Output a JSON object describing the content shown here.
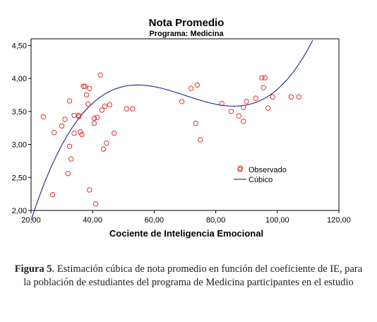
{
  "chart_data": {
    "type": "scatter",
    "title": "Nota Promedio",
    "subtitle": "Programa: Medicina",
    "xlabel": "Cociente de Inteligencia Emocional",
    "ylabel": "",
    "xlim": [
      20,
      120
    ],
    "ylim": [
      2.0,
      4.6
    ],
    "x_ticks": [
      20,
      40,
      60,
      80,
      100,
      120
    ],
    "x_tick_labels": [
      "20,00",
      "40,00",
      "60,00",
      "80,00",
      "100,00",
      "120,00"
    ],
    "y_ticks": [
      2.0,
      2.5,
      3.0,
      3.5,
      4.0,
      4.5
    ],
    "y_tick_labels": [
      "2,00",
      "2,50",
      "3,00",
      "3,50",
      "4,00",
      "4,50"
    ],
    "legend_position": "right-middle",
    "series": [
      {
        "name": "Observado",
        "kind": "points",
        "color": "#e0302a",
        "points": [
          [
            24,
            3.42
          ],
          [
            27,
            2.24
          ],
          [
            27.5,
            3.18
          ],
          [
            30,
            3.28
          ],
          [
            31,
            3.38
          ],
          [
            32,
            2.56
          ],
          [
            32.5,
            2.97
          ],
          [
            32.5,
            3.66
          ],
          [
            33,
            2.78
          ],
          [
            34,
            3.44
          ],
          [
            34,
            3.17
          ],
          [
            35.5,
            3.42
          ],
          [
            35.5,
            3.44
          ],
          [
            36,
            3.19
          ],
          [
            36.5,
            3.15
          ],
          [
            37,
            3.88
          ],
          [
            37.5,
            3.88
          ],
          [
            38,
            3.75
          ],
          [
            38.5,
            3.61
          ],
          [
            39,
            2.31
          ],
          [
            39,
            3.85
          ],
          [
            40.5,
            3.4
          ],
          [
            40.5,
            3.32
          ],
          [
            41,
            2.1
          ],
          [
            41.5,
            3.41
          ],
          [
            42.5,
            4.05
          ],
          [
            43,
            3.52
          ],
          [
            43.5,
            2.93
          ],
          [
            44,
            3.58
          ],
          [
            44.5,
            3.02
          ],
          [
            45.5,
            3.6
          ],
          [
            47,
            3.17
          ],
          [
            51,
            3.54
          ],
          [
            53,
            3.54
          ],
          [
            69,
            3.65
          ],
          [
            72,
            3.85
          ],
          [
            73.5,
            3.32
          ],
          [
            74,
            3.9
          ],
          [
            75,
            3.07
          ],
          [
            82,
            3.62
          ],
          [
            85,
            3.5
          ],
          [
            87.5,
            3.43
          ],
          [
            88,
            2.64
          ],
          [
            89,
            3.35
          ],
          [
            89,
            3.56
          ],
          [
            90,
            3.65
          ],
          [
            93,
            3.7
          ],
          [
            95,
            4.01
          ],
          [
            95.5,
            3.86
          ],
          [
            96,
            4.01
          ],
          [
            97,
            3.55
          ],
          [
            98.5,
            3.72
          ],
          [
            104.5,
            3.72
          ],
          [
            107,
            3.72
          ]
        ]
      },
      {
        "name": "Cúbico",
        "kind": "curve",
        "color": "#2b3a8f",
        "coefficients": [
          -2.4576,
          0.295475,
          -0.0044255,
          2.1e-05
        ]
      }
    ]
  },
  "caption": {
    "figure_label": "Figura 5",
    "text": ". Estimación cúbica de nota promedio en función del coeficiente de IE, para la población de estudiantes del programa de Medicina participantes en el estudio"
  }
}
